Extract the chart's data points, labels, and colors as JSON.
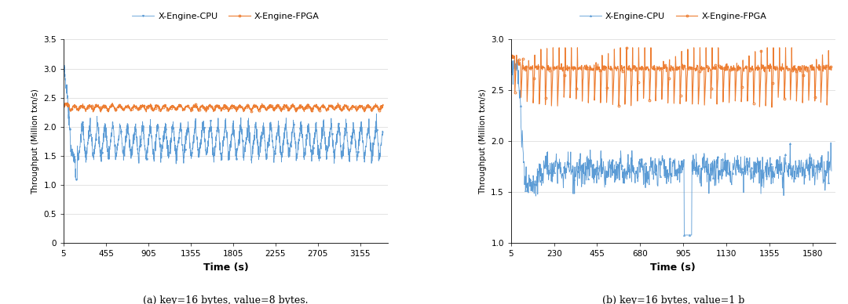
{
  "chart_a": {
    "caption": "(a) key=16 bytes, value=8 bytes.",
    "xlabel": "Time (s)",
    "ylabel": "Throughput (Million txn/s)",
    "xlim": [
      5,
      3450
    ],
    "ylim": [
      0,
      3.5
    ],
    "yticks": [
      0,
      0.5,
      1.0,
      1.5,
      2.0,
      2.5,
      3.0,
      3.5
    ],
    "xticks": [
      5,
      455,
      905,
      1355,
      1805,
      2255,
      2705,
      3155
    ],
    "xtick_labels": [
      "5",
      "455",
      "905",
      "1355",
      "1805",
      "2255",
      "2705",
      "3155"
    ],
    "cpu_color": "#5B9BD5",
    "fpga_color": "#ED7D31",
    "legend_labels": [
      "X-Engine-CPU",
      "X-Engine-FPGA"
    ]
  },
  "chart_b": {
    "caption": "(b) key=16 bytes, value=1 b",
    "xlabel": "Time (s)",
    "ylabel": "Throughput (Million txn/s)",
    "xlim": [
      5,
      1700
    ],
    "ylim": [
      1.0,
      3.0
    ],
    "yticks": [
      1.0,
      1.5,
      2.0,
      2.5,
      3.0
    ],
    "xticks": [
      5,
      230,
      455,
      680,
      905,
      1130,
      1355,
      1580
    ],
    "xtick_labels": [
      "5",
      "230",
      "455",
      "680",
      "905",
      "1130",
      "1355",
      "1580"
    ],
    "cpu_color": "#5B9BD5",
    "fpga_color": "#ED7D31",
    "legend_labels": [
      "X-Engine-CPU",
      "X-Engine-FPGA"
    ]
  },
  "bg_color": "#FFFFFF",
  "fig_width": 10.8,
  "fig_height": 3.88
}
